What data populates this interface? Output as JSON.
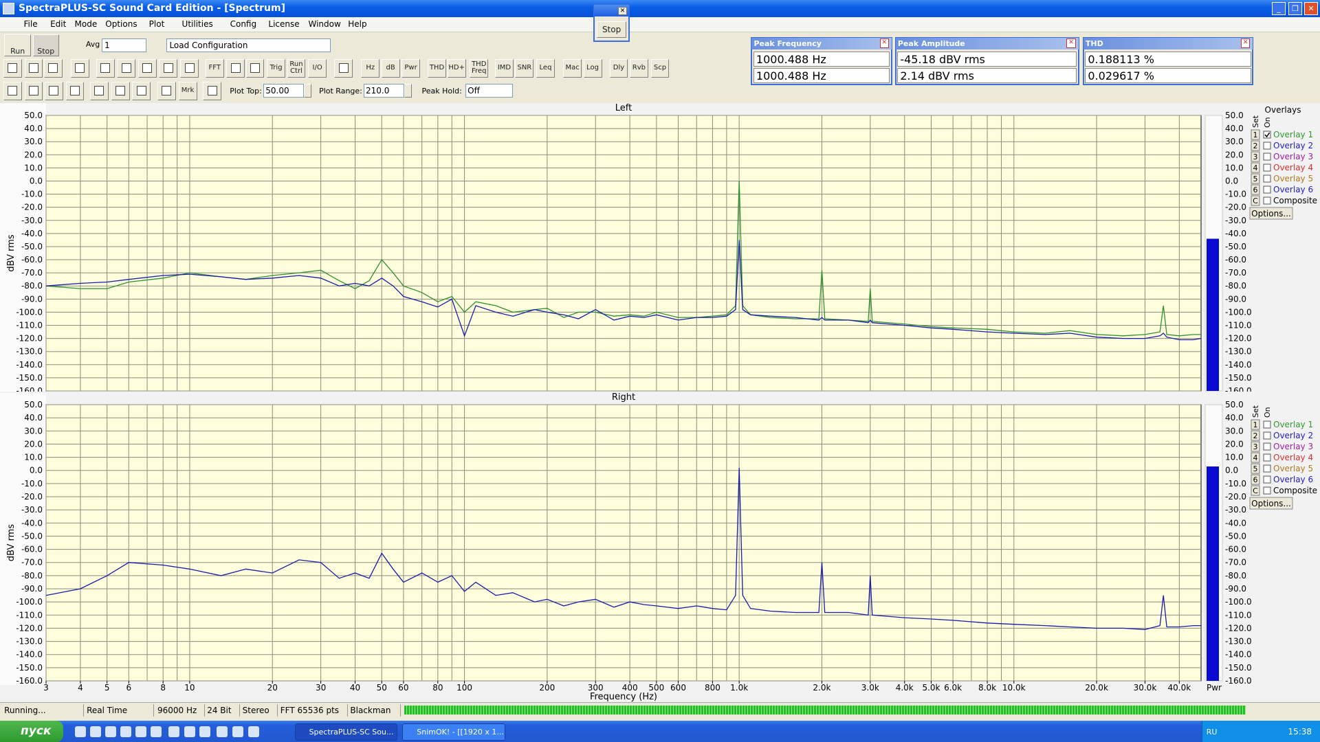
{
  "window": {
    "title": "SpectraPLUS-SC Sound Card Edition - [Spectrum]",
    "menu": [
      "File",
      "Edit",
      "Mode",
      "Options",
      "Plot",
      "Utilities",
      "Config",
      "License",
      "Window",
      "Help"
    ]
  },
  "stop_popup": {
    "button": "Stop"
  },
  "toolbar": {
    "run": "Run",
    "stop": "Stop",
    "avg_label": "Avg",
    "avg_value": "1",
    "config": "Load Configuration",
    "buttons": [
      "FFT",
      "Trig",
      "Run Ctrl",
      "I/O",
      "Hz",
      "dB",
      "Pwr",
      "THD",
      "THD+N",
      "THD Freq",
      "IMD",
      "SNR",
      "Leq",
      "Mac",
      "Log",
      "Dly",
      "Rvb",
      "Scp",
      "Mrk"
    ],
    "plot_top_label": "Plot Top:",
    "plot_top": "50.00",
    "plot_range_label": "Plot Range:",
    "plot_range": "210.0",
    "peak_hold_label": "Peak Hold:",
    "peak_hold": "Off"
  },
  "readouts": [
    {
      "title": "Peak Frequency",
      "values": [
        "1000.488 Hz",
        "1000.488 Hz"
      ]
    },
    {
      "title": "Peak Amplitude",
      "values": [
        "-45.18 dBV rms",
        "2.14 dBV rms"
      ]
    },
    {
      "title": "THD",
      "values": [
        "0.188113 %",
        "0.029617 %"
      ]
    }
  ],
  "chart_data": [
    {
      "type": "line",
      "title": "Left",
      "y_label": "dBV rms",
      "log_x": true,
      "grid": true,
      "xtick_labels": false,
      "xlim": [
        3,
        48000
      ],
      "ylim": [
        -160,
        50
      ],
      "yticks": [
        {
          "value": -160,
          "label": "-160.0"
        },
        {
          "value": -150,
          "label": "-150.0"
        },
        {
          "value": -140,
          "label": "-140.0"
        },
        {
          "value": -130,
          "label": "-130.0"
        },
        {
          "value": -120,
          "label": "-120.0"
        },
        {
          "value": -110,
          "label": "-110.0"
        },
        {
          "value": -100,
          "label": "-100.0"
        },
        {
          "value": -90,
          "label": "-90.0"
        },
        {
          "value": -80,
          "label": "-80.0"
        },
        {
          "value": -70,
          "label": "-70.0"
        },
        {
          "value": -60,
          "label": "-60.0"
        },
        {
          "value": -50,
          "label": "-50.0"
        },
        {
          "value": -40,
          "label": "-40.0"
        },
        {
          "value": -30,
          "label": "-30.0"
        },
        {
          "value": -20,
          "label": "-20.0"
        },
        {
          "value": -10,
          "label": "-10.0"
        },
        {
          "value": 0,
          "label": "0.0"
        },
        {
          "value": 10,
          "label": "10.0"
        },
        {
          "value": 20,
          "label": "20.0"
        },
        {
          "value": 30,
          "label": "30.0"
        },
        {
          "value": 40,
          "label": "40.0"
        },
        {
          "value": 50,
          "label": "50.0"
        }
      ],
      "xticks": [
        3,
        4,
        5,
        6,
        7,
        8,
        9,
        10,
        20,
        30,
        40,
        50,
        60,
        70,
        80,
        90,
        100,
        200,
        300,
        400,
        500,
        600,
        700,
        800,
        900,
        1000,
        2000,
        3000,
        4000,
        5000,
        6000,
        7000,
        8000,
        9000,
        10000,
        20000,
        30000,
        40000
      ],
      "x": [
        3,
        4,
        5,
        6,
        8,
        10,
        13,
        16,
        20,
        25,
        30,
        35,
        40,
        45,
        50,
        55,
        60,
        70,
        80,
        90,
        100,
        110,
        130,
        150,
        180,
        200,
        230,
        260,
        300,
        350,
        400,
        450,
        500,
        600,
        700,
        800,
        900,
        970,
        1000,
        1030,
        1100,
        1300,
        1600,
        1950,
        2000,
        2050,
        2500,
        2950,
        3000,
        3050,
        4000,
        5000,
        6000,
        8000,
        10000,
        13000,
        16000,
        20000,
        25000,
        30000,
        34000,
        35000,
        36000,
        40000,
        45000,
        48000
      ],
      "series": [
        {
          "name": "Overlay 1",
          "color": "#2f8f2f",
          "values": [
            -80,
            -82,
            -82,
            -77,
            -74,
            -70,
            -73,
            -75,
            -72,
            -70,
            -68,
            -76,
            -82,
            -76,
            -60,
            -70,
            -80,
            -85,
            -92,
            -88,
            -100,
            -92,
            -95,
            -100,
            -98,
            -97,
            -104,
            -100,
            -100,
            -103,
            -102,
            -103,
            -100,
            -104,
            -104,
            -103,
            -102,
            -95,
            0,
            -95,
            -102,
            -104,
            -105,
            -105,
            -68,
            -105,
            -106,
            -107,
            -82,
            -107,
            -109,
            -111,
            -112,
            -113,
            -115,
            -116,
            -114,
            -117,
            -118,
            -117,
            -115,
            -95,
            -117,
            -118,
            -117,
            -117
          ]
        },
        {
          "color": "#1a1aa8",
          "values": [
            -80,
            -78,
            -77,
            -75,
            -72,
            -71,
            -73,
            -75,
            -74,
            -72,
            -74,
            -80,
            -78,
            -80,
            -74,
            -80,
            -88,
            -92,
            -96,
            -90,
            -118,
            -95,
            -100,
            -103,
            -98,
            -100,
            -102,
            -105,
            -98,
            -106,
            -103,
            -104,
            -102,
            -106,
            -104,
            -104,
            -103,
            -98,
            -45,
            -98,
            -102,
            -103,
            -104,
            -106,
            -104,
            -106,
            -106,
            -108,
            -106,
            -108,
            -110,
            -112,
            -113,
            -115,
            -116,
            -117,
            -116,
            -119,
            -120,
            -120,
            -118,
            -116,
            -119,
            -121,
            -121,
            -120
          ]
        }
      ],
      "power_level": -44,
      "overlays": {
        "title": "Overlays",
        "set_label": "Set",
        "on_label": "On",
        "options": "Options...",
        "items": [
          {
            "set": "1",
            "name": "Overlay 1",
            "color": "#2f9a2f",
            "checked": true
          },
          {
            "set": "2",
            "name": "Overlay 2",
            "color": "#2020c8",
            "checked": false
          },
          {
            "set": "3",
            "name": "Overlay 3",
            "color": "#a020a8",
            "checked": false
          },
          {
            "set": "4",
            "name": "Overlay 4",
            "color": "#d83030",
            "checked": false
          },
          {
            "set": "5",
            "name": "Overlay 5",
            "color": "#b07a20",
            "checked": false
          },
          {
            "set": "6",
            "name": "Overlay 6",
            "color": "#2020c8",
            "checked": false
          },
          {
            "set": "C",
            "name": "Composite",
            "color": "#000000",
            "checked": false
          }
        ]
      }
    },
    {
      "type": "line",
      "title": "Right",
      "y_label": "dBV rms",
      "x_label": "Frequency (Hz)",
      "power_label": "Pwr",
      "log_x": true,
      "grid": true,
      "xtick_labels": true,
      "xlim": [
        3,
        48000
      ],
      "ylim": [
        -160,
        50
      ],
      "yticks": [
        {
          "value": -160,
          "label": "-160.0"
        },
        {
          "value": -150,
          "label": "-150.0"
        },
        {
          "value": -140,
          "label": "-140.0"
        },
        {
          "value": -130,
          "label": "-130.0"
        },
        {
          "value": -120,
          "label": "-120.0"
        },
        {
          "value": -110,
          "label": "-110.0"
        },
        {
          "value": -100,
          "label": "-100.0"
        },
        {
          "value": -90,
          "label": "-90.0"
        },
        {
          "value": -80,
          "label": "-80.0"
        },
        {
          "value": -70,
          "label": "-70.0"
        },
        {
          "value": -60,
          "label": "-60.0"
        },
        {
          "value": -50,
          "label": "-50.0"
        },
        {
          "value": -40,
          "label": "-40.0"
        },
        {
          "value": -30,
          "label": "-30.0"
        },
        {
          "value": -20,
          "label": "-20.0"
        },
        {
          "value": -10,
          "label": "-10.0"
        },
        {
          "value": 0,
          "label": "0.0"
        },
        {
          "value": 10,
          "label": "10.0"
        },
        {
          "value": 20,
          "label": "20.0"
        },
        {
          "value": 30,
          "label": "30.0"
        },
        {
          "value": 40,
          "label": "40.0"
        },
        {
          "value": 50,
          "label": "50.0"
        }
      ],
      "xticks": [
        3,
        4,
        5,
        6,
        8,
        10,
        20,
        30,
        40,
        50,
        60,
        80,
        100,
        200,
        300,
        400,
        500,
        600,
        800,
        {
          "value": 1000,
          "label": "1.0k"
        },
        {
          "value": 2000,
          "label": "2.0k"
        },
        {
          "value": 3000,
          "label": "3.0k"
        },
        {
          "value": 4000,
          "label": "4.0k"
        },
        {
          "value": 5000,
          "label": "5.0k"
        },
        {
          "value": 6000,
          "label": "6.0k"
        },
        {
          "value": 8000,
          "label": "8.0k"
        },
        {
          "value": 10000,
          "label": "10.0k"
        },
        {
          "value": 20000,
          "label": "20.0k"
        },
        {
          "value": 30000,
          "label": "30.0k"
        },
        {
          "value": 40000,
          "label": "40.0k"
        }
      ],
      "xminorticks": [
        7,
        9,
        70,
        90,
        700,
        900,
        7000,
        9000
      ],
      "x": [
        3,
        4,
        5,
        6,
        8,
        10,
        13,
        16,
        20,
        25,
        30,
        35,
        40,
        45,
        50,
        55,
        60,
        70,
        80,
        90,
        100,
        110,
        130,
        150,
        180,
        200,
        230,
        260,
        300,
        350,
        400,
        450,
        500,
        600,
        700,
        800,
        900,
        970,
        1000,
        1030,
        1100,
        1300,
        1600,
        1950,
        2000,
        2050,
        2500,
        2950,
        3000,
        3050,
        4000,
        5000,
        6000,
        8000,
        10000,
        13000,
        16000,
        20000,
        25000,
        30000,
        34000,
        35000,
        36000,
        40000,
        45000,
        48000
      ],
      "series": [
        {
          "color": "#1a1aa8",
          "values": [
            -95,
            -90,
            -80,
            -70,
            -72,
            -75,
            -80,
            -75,
            -78,
            -68,
            -70,
            -82,
            -78,
            -82,
            -63,
            -75,
            -85,
            -78,
            -85,
            -80,
            -92,
            -85,
            -95,
            -93,
            -100,
            -98,
            -103,
            -100,
            -98,
            -104,
            -100,
            -102,
            -103,
            -105,
            -103,
            -105,
            -106,
            -95,
            2,
            -95,
            -105,
            -107,
            -108,
            -108,
            -70,
            -108,
            -108,
            -110,
            -80,
            -110,
            -112,
            -113,
            -114,
            -116,
            -117,
            -118,
            -119,
            -120,
            -120,
            -121,
            -118,
            -95,
            -119,
            -119,
            -118,
            -118
          ]
        }
      ],
      "power_level": 3,
      "overlays": {
        "set_label": "Set",
        "on_label": "On",
        "options": "Options...",
        "items": [
          {
            "set": "1",
            "name": "Overlay 1",
            "color": "#2f9a2f",
            "checked": false
          },
          {
            "set": "2",
            "name": "Overlay 2",
            "color": "#2020c8",
            "checked": false
          },
          {
            "set": "3",
            "name": "Overlay 3",
            "color": "#a020a8",
            "checked": false
          },
          {
            "set": "4",
            "name": "Overlay 4",
            "color": "#d83030",
            "checked": false
          },
          {
            "set": "5",
            "name": "Overlay 5",
            "color": "#b07a20",
            "checked": false
          },
          {
            "set": "6",
            "name": "Overlay 6",
            "color": "#2020c8",
            "checked": false
          },
          {
            "set": "C",
            "name": "Composite",
            "color": "#000000",
            "checked": false
          }
        ]
      }
    }
  ],
  "status": [
    "Running...",
    "Real Time",
    "96000 Hz",
    "24 Bit",
    "Stereo",
    "FFT 65536 pts",
    "Blackman"
  ],
  "taskbar": {
    "start": "пуск",
    "tasks": [
      "SpectraPLUS-SC Sou...",
      "SnimOK! - [[1920 x 1..."
    ],
    "lang": "RU",
    "clock": "15:38"
  }
}
